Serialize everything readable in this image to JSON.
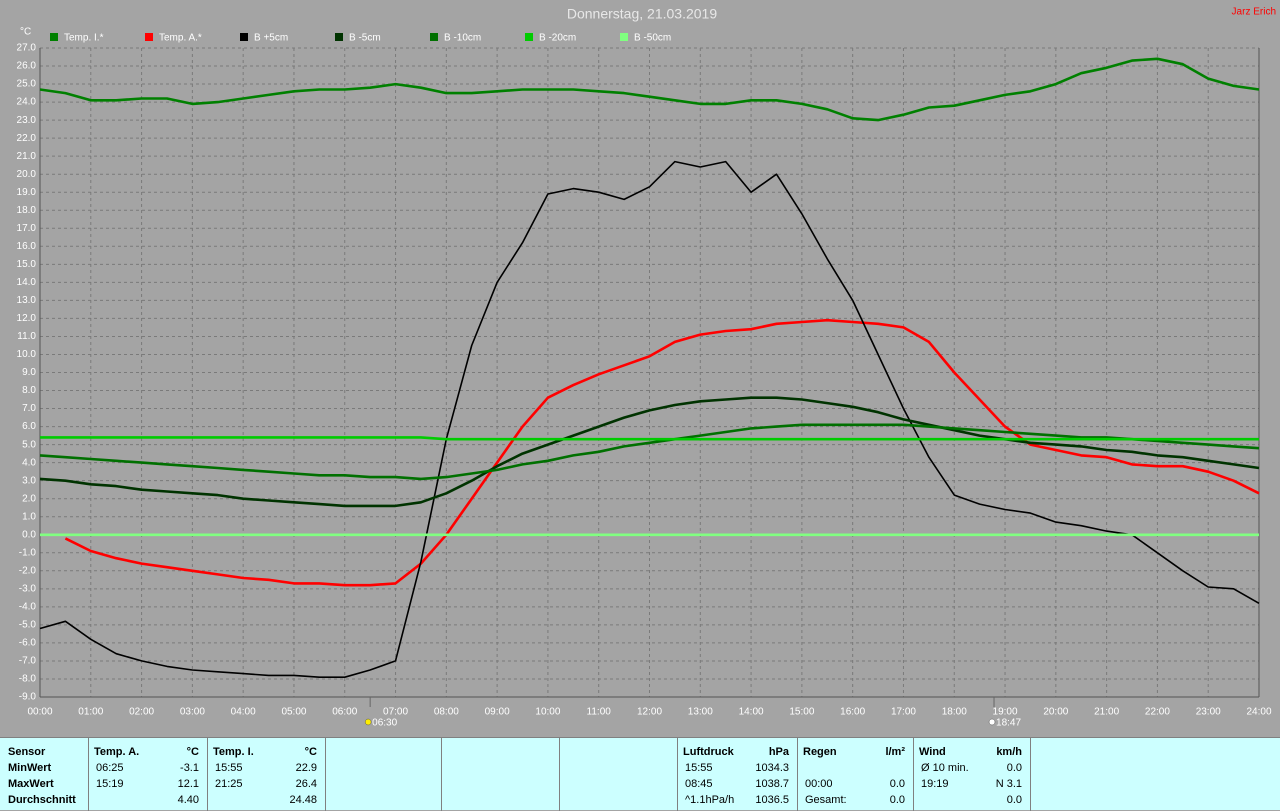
{
  "chart_data": {
    "type": "line",
    "title": "Donnerstag, 21.03.2019",
    "author": "Jarz Erich",
    "y_label": "°C",
    "x": [
      0,
      0.5,
      1,
      1.5,
      2,
      2.5,
      3,
      3.5,
      4,
      4.5,
      5,
      5.5,
      6,
      6.5,
      7,
      7.5,
      8,
      8.5,
      9,
      9.5,
      10,
      10.5,
      11,
      11.5,
      12,
      12.5,
      13,
      13.5,
      14,
      14.5,
      15,
      15.5,
      16,
      16.5,
      17,
      17.5,
      18,
      18.5,
      19,
      19.5,
      20,
      20.5,
      21,
      21.5,
      22,
      22.5,
      23,
      23.5,
      24
    ],
    "xlim": [
      0,
      24
    ],
    "xticks": [
      {
        "value": 0,
        "label": "00:00"
      },
      {
        "value": 1,
        "label": "01:00"
      },
      {
        "value": 2,
        "label": "02:00"
      },
      {
        "value": 3,
        "label": "03:00"
      },
      {
        "value": 4,
        "label": "04:00"
      },
      {
        "value": 5,
        "label": "05:00"
      },
      {
        "value": 6,
        "label": "06:00"
      },
      {
        "value": 7,
        "label": "07:00"
      },
      {
        "value": 8,
        "label": "08:00"
      },
      {
        "value": 9,
        "label": "09:00"
      },
      {
        "value": 10,
        "label": "10:00"
      },
      {
        "value": 11,
        "label": "11:00"
      },
      {
        "value": 12,
        "label": "12:00"
      },
      {
        "value": 13,
        "label": "13:00"
      },
      {
        "value": 14,
        "label": "14:00"
      },
      {
        "value": 15,
        "label": "15:00"
      },
      {
        "value": 16,
        "label": "16:00"
      },
      {
        "value": 17,
        "label": "17:00"
      },
      {
        "value": 18,
        "label": "18:00"
      },
      {
        "value": 19,
        "label": "19:00"
      },
      {
        "value": 20,
        "label": "20:00"
      },
      {
        "value": 21,
        "label": "21:00"
      },
      {
        "value": 22,
        "label": "22:00"
      },
      {
        "value": 23,
        "label": "23:00"
      },
      {
        "value": 24,
        "label": "24:00"
      }
    ],
    "ylim": [
      -9,
      27
    ],
    "yticks": [
      {
        "value": 27,
        "label": "27.0"
      },
      {
        "value": 26,
        "label": "26.0"
      },
      {
        "value": 25,
        "label": "25.0"
      },
      {
        "value": 24,
        "label": "24.0"
      },
      {
        "value": 23,
        "label": "23.0"
      },
      {
        "value": 22,
        "label": "22.0"
      },
      {
        "value": 21,
        "label": "21.0"
      },
      {
        "value": 20,
        "label": "20.0"
      },
      {
        "value": 19,
        "label": "19.0"
      },
      {
        "value": 18,
        "label": "18.0"
      },
      {
        "value": 17,
        "label": "17.0"
      },
      {
        "value": 16,
        "label": "16.0"
      },
      {
        "value": 15,
        "label": "15.0"
      },
      {
        "value": 14,
        "label": "14.0"
      },
      {
        "value": 13,
        "label": "13.0"
      },
      {
        "value": 12,
        "label": "12.0"
      },
      {
        "value": 11,
        "label": "11.0"
      },
      {
        "value": 10,
        "label": "10.0"
      },
      {
        "value": 9,
        "label": "9.0"
      },
      {
        "value": 8,
        "label": "8.0"
      },
      {
        "value": 7,
        "label": "7.0"
      },
      {
        "value": 6,
        "label": "6.0"
      },
      {
        "value": 5,
        "label": "5.0"
      },
      {
        "value": 4,
        "label": "4.0"
      },
      {
        "value": 3,
        "label": "3.0"
      },
      {
        "value": 2,
        "label": "2.0"
      },
      {
        "value": 1,
        "label": "1.0"
      },
      {
        "value": 0,
        "label": "0.0"
      },
      {
        "value": -1,
        "label": "-1.0"
      },
      {
        "value": -2,
        "label": "-2.0"
      },
      {
        "value": -3,
        "label": "-3.0"
      },
      {
        "value": -4,
        "label": "-4.0"
      },
      {
        "value": -5,
        "label": "-5.0"
      },
      {
        "value": -6,
        "label": "-6.0"
      },
      {
        "value": -7,
        "label": "-7.0"
      },
      {
        "value": -8,
        "label": "-8.0"
      },
      {
        "value": -9,
        "label": "-9.0"
      }
    ],
    "grid": true,
    "legend": "top",
    "series": [
      {
        "name": "Temp. I.*",
        "color": "#008000",
        "values": [
          24.7,
          24.5,
          24.1,
          24.1,
          24.2,
          24.2,
          23.9,
          24.0,
          24.2,
          24.4,
          24.6,
          24.7,
          24.7,
          24.8,
          25.0,
          24.8,
          24.5,
          24.5,
          24.6,
          24.7,
          24.7,
          24.7,
          24.6,
          24.5,
          24.3,
          24.1,
          23.9,
          23.9,
          24.1,
          24.1,
          23.9,
          23.6,
          23.1,
          23.0,
          23.3,
          23.7,
          23.8,
          24.1,
          24.4,
          24.6,
          25.0,
          25.6,
          25.9,
          26.3,
          26.4,
          26.1,
          25.3,
          24.9,
          24.7
        ]
      },
      {
        "name": "Temp. A.*",
        "color": "#ff0000",
        "values": [
          null,
          -0.2,
          -0.9,
          -1.3,
          -1.6,
          -1.8,
          -2.0,
          -2.2,
          -2.4,
          -2.5,
          -2.7,
          -2.7,
          -2.8,
          -2.8,
          -2.7,
          -1.6,
          0.0,
          2.0,
          4.0,
          6.0,
          7.6,
          8.3,
          8.9,
          9.4,
          9.9,
          10.7,
          11.1,
          11.3,
          11.4,
          11.7,
          11.8,
          11.9,
          11.8,
          11.7,
          11.5,
          10.7,
          9.0,
          7.5,
          6.0,
          5.0,
          4.7,
          4.4,
          4.3,
          3.9,
          3.8,
          3.8,
          3.5,
          3.0,
          2.3
        ]
      },
      {
        "name": "B +5cm",
        "color": "#000000",
        "values": [
          -5.2,
          -4.8,
          -5.8,
          -6.6,
          -7.0,
          -7.3,
          -7.5,
          -7.6,
          -7.7,
          -7.8,
          -7.8,
          -7.9,
          -7.9,
          -7.5,
          -7.0,
          -1.5,
          5.3,
          10.5,
          14.0,
          16.2,
          18.9,
          19.2,
          19.0,
          18.6,
          19.3,
          20.7,
          20.4,
          20.7,
          19.0,
          20.0,
          17.8,
          15.3,
          13.0,
          10.0,
          7.0,
          4.3,
          2.2,
          1.7,
          1.4,
          1.2,
          0.7,
          0.5,
          0.2,
          0.0,
          -1.0,
          -2.0,
          -2.9,
          -3.0,
          -3.8
        ]
      },
      {
        "name": "B -5cm",
        "color": "#003300",
        "values": [
          3.1,
          3.0,
          2.8,
          2.7,
          2.5,
          2.4,
          2.3,
          2.2,
          2.0,
          1.9,
          1.8,
          1.7,
          1.6,
          1.6,
          1.6,
          1.8,
          2.3,
          3.0,
          3.8,
          4.5,
          5.0,
          5.5,
          6.0,
          6.5,
          6.9,
          7.2,
          7.4,
          7.5,
          7.6,
          7.6,
          7.5,
          7.3,
          7.1,
          6.8,
          6.4,
          6.1,
          5.8,
          5.5,
          5.3,
          5.1,
          5.0,
          4.9,
          4.7,
          4.6,
          4.4,
          4.3,
          4.1,
          3.9,
          3.7
        ]
      },
      {
        "name": "B -10cm",
        "color": "#007000",
        "values": [
          4.4,
          4.3,
          4.2,
          4.1,
          4.0,
          3.9,
          3.8,
          3.7,
          3.6,
          3.5,
          3.4,
          3.3,
          3.3,
          3.2,
          3.2,
          3.1,
          3.2,
          3.4,
          3.6,
          3.9,
          4.1,
          4.4,
          4.6,
          4.9,
          5.1,
          5.3,
          5.5,
          5.7,
          5.9,
          6.0,
          6.1,
          6.1,
          6.1,
          6.1,
          6.1,
          6.0,
          5.9,
          5.8,
          5.7,
          5.6,
          5.5,
          5.4,
          5.4,
          5.3,
          5.2,
          5.1,
          5.0,
          4.9,
          4.8
        ]
      },
      {
        "name": "B -20cm",
        "color": "#00cc00",
        "values": [
          5.4,
          5.4,
          5.4,
          5.4,
          5.4,
          5.4,
          5.4,
          5.4,
          5.4,
          5.4,
          5.4,
          5.4,
          5.4,
          5.4,
          5.4,
          5.4,
          5.3,
          5.3,
          5.3,
          5.3,
          5.3,
          5.3,
          5.3,
          5.3,
          5.3,
          5.3,
          5.3,
          5.3,
          5.3,
          5.3,
          5.3,
          5.3,
          5.3,
          5.3,
          5.3,
          5.3,
          5.3,
          5.3,
          5.3,
          5.3,
          5.3,
          5.3,
          5.3,
          5.3,
          5.3,
          5.3,
          5.3,
          5.3,
          5.3
        ]
      },
      {
        "name": "B -50cm",
        "color": "#80ff80",
        "values": [
          0,
          0,
          0,
          0,
          0,
          0,
          0,
          0,
          0,
          0,
          0,
          0,
          0,
          0,
          0,
          0,
          0,
          0,
          0,
          0,
          0,
          0,
          0,
          0,
          0,
          0,
          0,
          0,
          0,
          0,
          0,
          0,
          0,
          0,
          0,
          0,
          0,
          0,
          0,
          0,
          0,
          0,
          0,
          0,
          0,
          0,
          0,
          0,
          0
        ]
      }
    ],
    "annotations": [
      {
        "x": 6.5,
        "label": "06:30"
      },
      {
        "x": 18.783,
        "label": "18:47"
      }
    ]
  },
  "stats": {
    "sensor_header": "Sensor",
    "row_labels": [
      "MinWert",
      "MaxWert",
      "Durchschnitt"
    ],
    "groups": [
      {
        "name": "Temp. A.",
        "unit": "°C",
        "rows": [
          [
            "06:25",
            "-3.1"
          ],
          [
            "15:19",
            "12.1"
          ],
          [
            null,
            "4.40"
          ]
        ]
      },
      {
        "name": "Temp. I.",
        "unit": "°C",
        "rows": [
          [
            "15:55",
            "22.9"
          ],
          [
            "21:25",
            "26.4"
          ],
          [
            null,
            "24.48"
          ]
        ]
      },
      {
        "name": "Luftdruck",
        "unit": "hPa",
        "rows": [
          [
            "15:55",
            "1034.3"
          ],
          [
            "08:45",
            "1038.7"
          ],
          [
            "^1.1hPa/h",
            "1036.5"
          ]
        ]
      },
      {
        "name": "Regen",
        "unit": "l/m²",
        "rows": [
          [
            null,
            null
          ],
          [
            "00:00",
            "0.0"
          ],
          [
            "Gesamt:",
            "0.0"
          ]
        ]
      },
      {
        "name": "Wind",
        "unit": "km/h",
        "rows": [
          [
            "Ø 10 min.",
            "0.0"
          ],
          [
            "19:19",
            "N 3.1"
          ],
          [
            null,
            "0.0"
          ]
        ]
      }
    ]
  }
}
